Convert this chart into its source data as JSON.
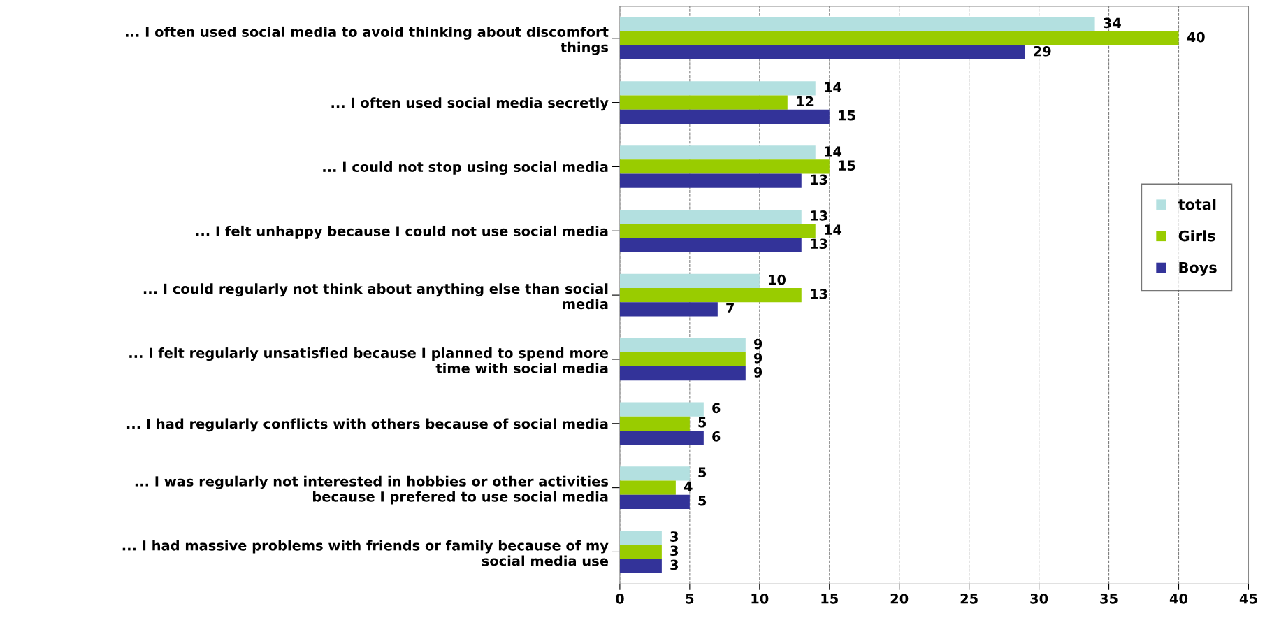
{
  "chart_data": {
    "type": "bar",
    "orientation": "horizontal",
    "categories": [
      "... I often used social media to avoid thinking about discomfort\nthings",
      "... I often used social media secretly",
      "... I could not stop using social media",
      "... I felt unhappy because I could not use social media",
      "... I could regularly not think about anything else than social\nmedia",
      "... I felt regularly unsatisfied because I planned to spend more\ntime with social media",
      "... I had regularly conflicts with others because of social media",
      "... I was regularly not interested in hobbies or other activities\nbecause I prefered to use social media",
      "... I had massive problems with friends or family because of my\nsocial media use"
    ],
    "series": [
      {
        "name": "total",
        "color": "#b3e0e0",
        "values": [
          34,
          14,
          14,
          13,
          10,
          9,
          6,
          5,
          3
        ]
      },
      {
        "name": "Girls",
        "color": "#99cc00",
        "values": [
          40,
          12,
          15,
          14,
          13,
          9,
          5,
          4,
          3
        ]
      },
      {
        "name": "Boys",
        "color": "#333399",
        "values": [
          29,
          15,
          13,
          13,
          7,
          9,
          6,
          5,
          3
        ]
      }
    ],
    "xlim": [
      0,
      45
    ],
    "xticks": [
      0,
      5,
      10,
      15,
      20,
      25,
      30,
      35,
      40,
      45
    ],
    "grid": "x",
    "legend": "right",
    "data_labels": true
  }
}
